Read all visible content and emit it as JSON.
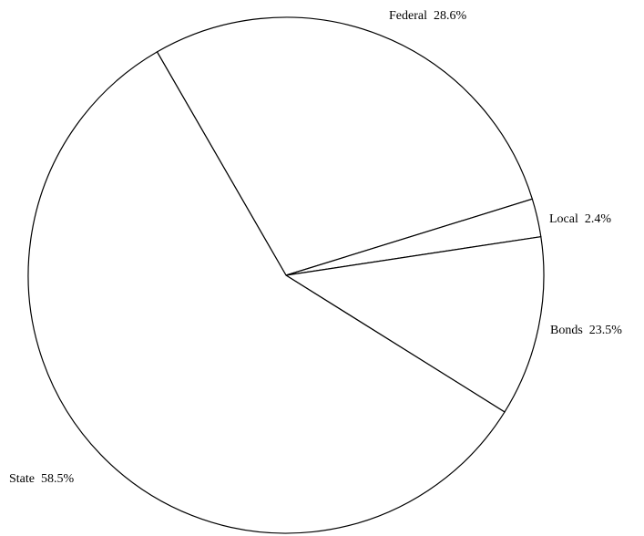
{
  "chart_data": {
    "type": "pie",
    "slices": [
      {
        "label": "Federal",
        "value": 28.6,
        "display": "28.6%"
      },
      {
        "label": "Local",
        "value": 2.4,
        "display": "2.4%"
      },
      {
        "label": "Bonds",
        "value": 23.5,
        "display": "23.5%"
      },
      {
        "label": "State",
        "value": 58.5,
        "display": "58.5%"
      }
    ],
    "fill_color": "#ffffff",
    "stroke_color": "#000000",
    "legend": "none"
  }
}
